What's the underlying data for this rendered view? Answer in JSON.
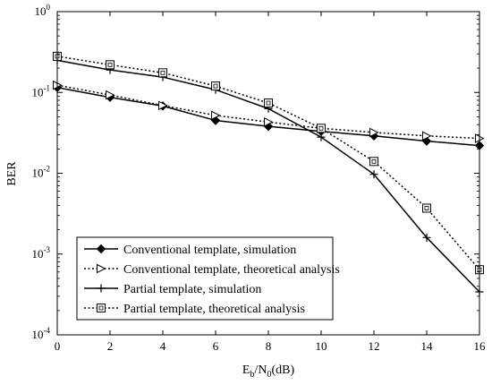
{
  "chart_data": {
    "type": "line",
    "xlabel": {
      "main": "E",
      "sub1": "b",
      "mid": "/N",
      "sub2": "0",
      "tail": "(dB)"
    },
    "ylabel": "BER",
    "xlim": [
      0,
      16
    ],
    "ylim": [
      0.0001,
      1
    ],
    "yscale": "log",
    "x_ticks": [
      0,
      2,
      4,
      6,
      8,
      10,
      12,
      14,
      16
    ],
    "y_ticks": [
      {
        "value": 1,
        "base": "10",
        "exp": "0"
      },
      {
        "value": 0.1,
        "base": "10",
        "exp": "-1"
      },
      {
        "value": 0.01,
        "base": "10",
        "exp": "-2"
      },
      {
        "value": 0.001,
        "base": "10",
        "exp": "-3"
      },
      {
        "value": 0.0001,
        "base": "10",
        "exp": "-4"
      }
    ],
    "grid": false,
    "legend_position": "bottom-left",
    "x": [
      0,
      2,
      4,
      6,
      8,
      10,
      12,
      14,
      16
    ],
    "series": [
      {
        "name": "Conventional template, simulation",
        "style": "solid",
        "marker": "diamond",
        "values": [
          0.115,
          0.087,
          0.068,
          0.045,
          0.038,
          0.033,
          0.029,
          0.025,
          0.022
        ]
      },
      {
        "name": "Conventional template, theoretical analysis",
        "style": "dotted",
        "marker": "triangle-right",
        "values": [
          0.123,
          0.093,
          0.069,
          0.052,
          0.043,
          0.036,
          0.032,
          0.029,
          0.027
        ]
      },
      {
        "name": "Partial template, simulation",
        "style": "solid",
        "marker": "plus",
        "values": [
          0.25,
          0.19,
          0.155,
          0.108,
          0.063,
          0.028,
          0.0097,
          0.0016,
          0.00034
        ]
      },
      {
        "name": "Partial template, theoretical analysis",
        "style": "dotted",
        "marker": "square",
        "values": [
          0.28,
          0.22,
          0.175,
          0.12,
          0.074,
          0.036,
          0.014,
          0.0037,
          0.00064
        ]
      }
    ]
  }
}
